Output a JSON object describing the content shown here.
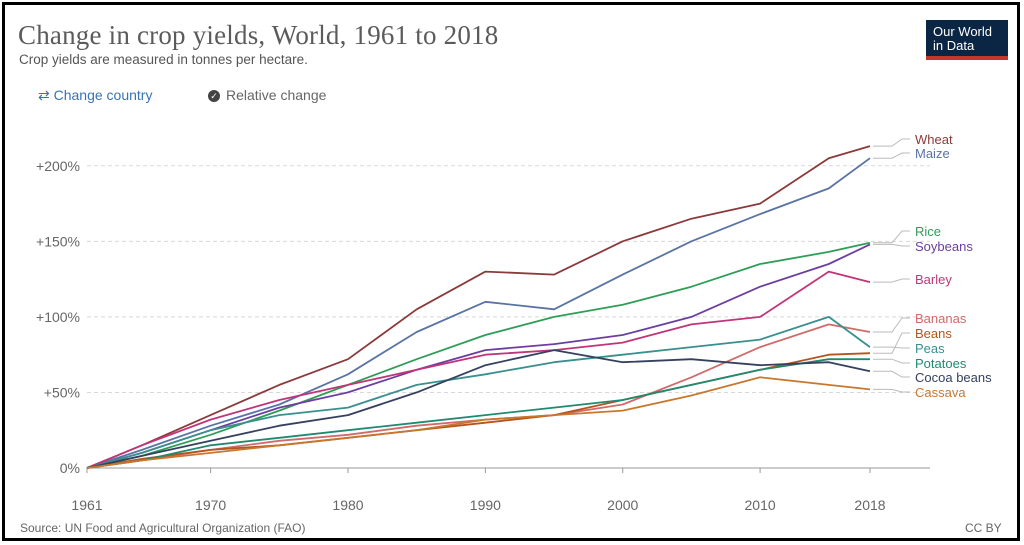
{
  "header": {
    "title": "Change in crop yields, World, 1961 to 2018",
    "subtitle": "Crop yields are measured in tonnes per hectare.",
    "logo_line1": "Our World",
    "logo_line2": "in Data"
  },
  "controls": {
    "change_country": "Change country",
    "relative_change": "Relative change"
  },
  "footer": {
    "source": "Source: UN Food and Agricultural Organization (FAO)",
    "license": "CC BY"
  },
  "chart_data": {
    "type": "line",
    "x": [
      1961,
      1965,
      1970,
      1975,
      1980,
      1985,
      1990,
      1995,
      2000,
      2005,
      2010,
      2015,
      2018
    ],
    "xlim": [
      1961,
      2018
    ],
    "ylim": [
      0,
      225
    ],
    "yticks": [
      0,
      50,
      100,
      150,
      200
    ],
    "ytick_labels": [
      "0%",
      "+50%",
      "+100%",
      "+150%",
      "+200%"
    ],
    "xticks": [
      1961,
      1970,
      1980,
      1990,
      2000,
      2010,
      2018
    ],
    "grid": "horizontal dashed",
    "legend": "right end labels",
    "series": [
      {
        "name": "Wheat",
        "color": "#8b3a3a",
        "values": [
          0,
          15,
          35,
          55,
          72,
          105,
          130,
          128,
          150,
          165,
          175,
          205,
          213
        ]
      },
      {
        "name": "Maize",
        "color": "#5a73a5",
        "values": [
          0,
          12,
          28,
          42,
          62,
          90,
          110,
          105,
          128,
          150,
          168,
          185,
          205
        ]
      },
      {
        "name": "Rice",
        "color": "#2e9e57",
        "values": [
          0,
          8,
          22,
          38,
          55,
          72,
          88,
          100,
          108,
          120,
          135,
          143,
          149
        ]
      },
      {
        "name": "Soybeans",
        "color": "#6b3fa0",
        "values": [
          0,
          10,
          25,
          40,
          50,
          65,
          78,
          82,
          88,
          100,
          120,
          135,
          148
        ]
      },
      {
        "name": "Barley",
        "color": "#c2347a",
        "values": [
          0,
          15,
          32,
          45,
          55,
          65,
          75,
          78,
          83,
          95,
          100,
          130,
          123
        ]
      },
      {
        "name": "Bananas",
        "color": "#d16a6a",
        "values": [
          0,
          5,
          12,
          18,
          22,
          28,
          32,
          35,
          42,
          60,
          80,
          95,
          90
        ]
      },
      {
        "name": "Beans",
        "color": "#b5541c",
        "values": [
          0,
          6,
          12,
          15,
          20,
          25,
          30,
          35,
          45,
          55,
          65,
          75,
          76
        ]
      },
      {
        "name": "Peas",
        "color": "#3a8f8f",
        "values": [
          0,
          10,
          25,
          35,
          40,
          55,
          62,
          70,
          75,
          80,
          85,
          100,
          80
        ]
      },
      {
        "name": "Potatoes",
        "color": "#1f8a70",
        "values": [
          0,
          5,
          15,
          20,
          25,
          30,
          35,
          40,
          45,
          55,
          65,
          72,
          72
        ]
      },
      {
        "name": "Cocoa beans",
        "color": "#35415e",
        "values": [
          0,
          8,
          18,
          28,
          35,
          50,
          68,
          78,
          70,
          72,
          68,
          70,
          64
        ]
      },
      {
        "name": "Cassava",
        "color": "#c9772e",
        "values": [
          0,
          5,
          10,
          15,
          20,
          25,
          32,
          35,
          38,
          48,
          60,
          55,
          52
        ]
      }
    ],
    "label_rows": [
      143,
      157,
      235,
      250,
      283,
      322,
      337,
      352,
      367,
      381,
      396
    ]
  }
}
